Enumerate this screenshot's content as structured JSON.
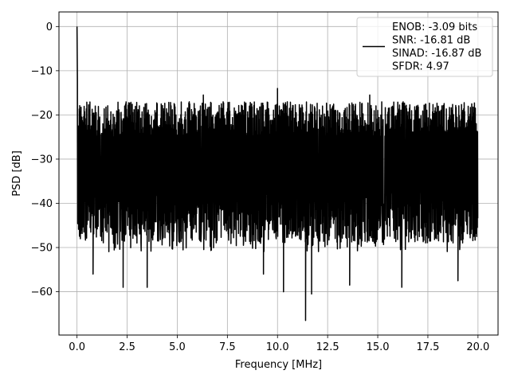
{
  "chart_data": {
    "type": "line",
    "title": "",
    "xlabel": "Frequency [MHz]",
    "ylabel": "PSD [dB]",
    "xlim": [
      -0.9,
      21.0
    ],
    "ylim": [
      -69.8,
      3.3
    ],
    "xticks": [
      0.0,
      2.5,
      5.0,
      7.5,
      10.0,
      12.5,
      15.0,
      17.5,
      20.0
    ],
    "xtick_labels": [
      "0.0",
      "2.5",
      "5.0",
      "7.5",
      "10.0",
      "12.5",
      "15.0",
      "17.5",
      "20.0"
    ],
    "yticks": [
      0,
      -10,
      -20,
      -30,
      -40,
      -50,
      -60
    ],
    "ytick_labels": [
      "0",
      "−10",
      "−20",
      "−30",
      "−40",
      "−50",
      "−60"
    ],
    "grid": true,
    "legend_position": "top-right",
    "series": [
      {
        "name": "ENOB: -3.09 bits\nSNR: -16.81 dB\nSINAD: -16.87 dB\nSFDR: 4.97",
        "color": "#000000",
        "x_range": [
          0.0,
          20.0
        ],
        "peak": {
          "x": 0.0,
          "y": 0.0
        },
        "noise_floor_mean": -30,
        "noise_upper_envelope": -17,
        "noise_lower_envelope": -45,
        "notable_minima": [
          {
            "x": 0.8,
            "y": -56
          },
          {
            "x": 2.3,
            "y": -59
          },
          {
            "x": 3.5,
            "y": -59
          },
          {
            "x": 9.3,
            "y": -56
          },
          {
            "x": 10.3,
            "y": -60
          },
          {
            "x": 11.4,
            "y": -66.5
          },
          {
            "x": 11.7,
            "y": -60.5
          },
          {
            "x": 13.6,
            "y": -58.5
          },
          {
            "x": 16.2,
            "y": -59
          },
          {
            "x": 19.0,
            "y": -57.5
          }
        ],
        "notable_maxima": [
          {
            "x": 10.0,
            "y": -14
          },
          {
            "x": 6.3,
            "y": -15.5
          },
          {
            "x": 14.6,
            "y": -15.5
          }
        ]
      }
    ],
    "legend_lines": [
      "ENOB: -3.09 bits",
      "SNR: -16.81 dB",
      "SINAD: -16.87 dB",
      "SFDR: 4.97"
    ]
  }
}
